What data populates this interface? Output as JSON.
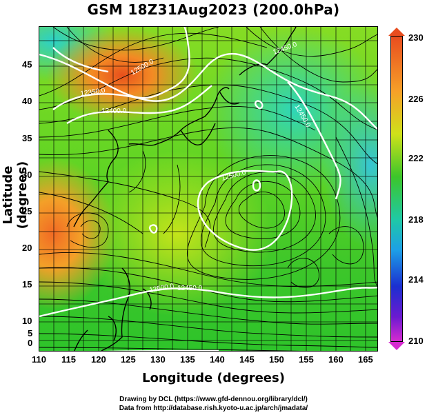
{
  "title": "GSM 18Z31Aug2023 (200.0hPa)",
  "x_axis": {
    "label": "Longitude (degrees)",
    "ticks": [
      "110",
      "115",
      "120",
      "125",
      "130",
      "135",
      "140",
      "145",
      "150",
      "155",
      "160",
      "165"
    ]
  },
  "y_axis": {
    "label": "Latitude  (degrees)",
    "ticks": [
      "45",
      "40",
      "35",
      "30",
      "25",
      "20",
      "15",
      "10",
      "5",
      "0"
    ]
  },
  "colorbar": {
    "ticks": [
      "230",
      "226",
      "222",
      "218",
      "214",
      "210"
    ],
    "colors": [
      "#e84d1f",
      "#f6a028",
      "#cfe11a",
      "#3cc62a",
      "#1fc9a5",
      "#1da0e6",
      "#1b2fd0",
      "#d62ad0"
    ]
  },
  "contour_labels": [
    "12500.0",
    "12350.0",
    "12400.0",
    "12450.0",
    "12500.0",
    "12450.0",
    "12500.0",
    "12450.0"
  ],
  "footer": {
    "line1": "Drawing by DCL (https://www.gfd-dennou.org/library/dcl/)",
    "line2": "Data from http://database.rish.kyoto-u.ac.jp/arch/jmadata/"
  }
}
